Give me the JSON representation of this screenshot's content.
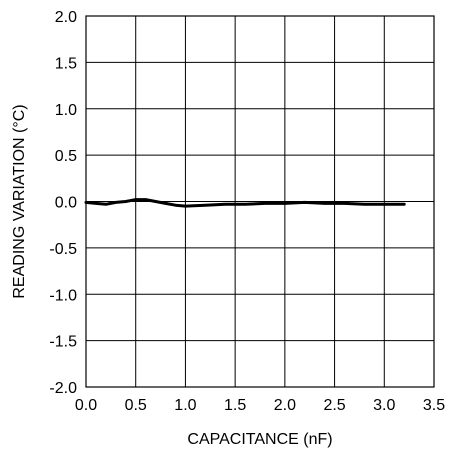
{
  "chart_data": {
    "type": "line",
    "title": "",
    "xlabel": "CAPACITANCE (nF)",
    "ylabel": "READING VARIATION (°C)",
    "xlim": [
      0,
      3.5
    ],
    "ylim": [
      -2.0,
      2.0
    ],
    "xticks": [
      "0.0",
      "0.5",
      "1.0",
      "1.5",
      "2.0",
      "2.5",
      "3.0",
      "3.5"
    ],
    "yticks": [
      "2.0",
      "1.5",
      "1.0",
      "0.5",
      "0.0",
      "-0.5",
      "-1.0",
      "-1.5",
      "-2.0"
    ],
    "grid": true,
    "series": [
      {
        "x": [
          0.0,
          0.1,
          0.2,
          0.3,
          0.4,
          0.5,
          0.6,
          0.7,
          0.8,
          0.9,
          1.0,
          1.2,
          1.4,
          1.6,
          1.8,
          2.0,
          2.2,
          2.4,
          2.6,
          2.8,
          3.0,
          3.2
        ],
        "values": [
          -0.01,
          -0.02,
          -0.03,
          -0.01,
          0.0,
          0.02,
          0.02,
          0.0,
          -0.02,
          -0.04,
          -0.05,
          -0.04,
          -0.03,
          -0.03,
          -0.02,
          -0.02,
          -0.01,
          -0.02,
          -0.02,
          -0.03,
          -0.03,
          -0.03
        ]
      }
    ]
  }
}
